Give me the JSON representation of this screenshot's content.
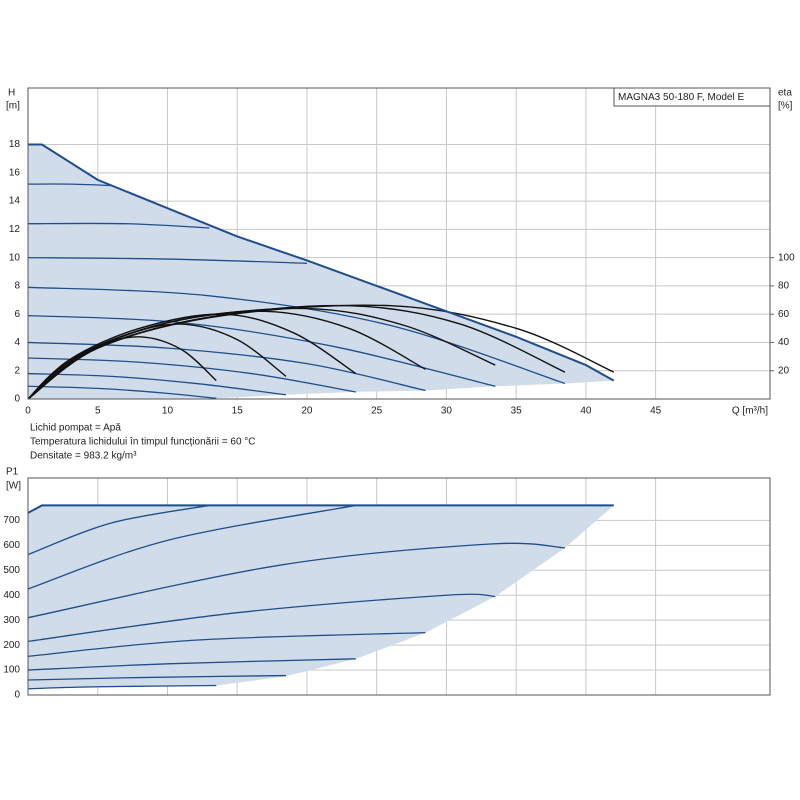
{
  "chart_data": [
    {
      "type": "line",
      "title": "MAGNA3 50-180 F, Model E",
      "y_label": "H",
      "y_unit": "[m]",
      "y2_label": "eta",
      "y2_unit": "[%]",
      "x_label": "Q [m³/h]",
      "notes": [
        "Lichid pompat = Apă",
        "Temperatura lichidului în timpul funcționării = 60 °C",
        "Densitate = 983.2 kg/m³"
      ],
      "xlim": [
        0,
        53.2
      ],
      "ylim": [
        0,
        22
      ],
      "y2lim": [
        0,
        220
      ],
      "xticks": [
        0,
        5,
        10,
        15,
        20,
        25,
        30,
        35,
        40,
        45
      ],
      "yticks": [
        0,
        2,
        4,
        6,
        8,
        10,
        12,
        14,
        16,
        18
      ],
      "y2ticks": [
        20,
        40,
        60,
        80,
        100
      ],
      "grid": true,
      "area_color": "#d0dce9",
      "envelope": {
        "color": "#1f4e8c",
        "x": [
          0,
          1,
          5,
          10,
          15,
          20,
          25,
          30,
          35,
          40,
          42
        ],
        "values": [
          18,
          18,
          15.5,
          13.5,
          11.5,
          9.8,
          8,
          6.2,
          4.4,
          2.4,
          1.3
        ]
      },
      "lower_bound": {
        "x": [
          0,
          13.5,
          18.5,
          23.5,
          28.5,
          33.5,
          38.5,
          42
        ],
        "values": [
          0,
          0.05,
          0.3,
          0.5,
          0.6,
          0.9,
          1.1,
          1.3
        ]
      },
      "series": [
        {
          "color": "#1f4e8c",
          "x": [
            0,
            5,
            10,
            13.5
          ],
          "values": [
            0.9,
            0.75,
            0.4,
            0.05
          ]
        },
        {
          "color": "#1f4e8c",
          "x": [
            0,
            6,
            12,
            18.5
          ],
          "values": [
            1.8,
            1.6,
            1.1,
            0.3
          ]
        },
        {
          "color": "#1f4e8c",
          "x": [
            0,
            8,
            16,
            23.5
          ],
          "values": [
            2.9,
            2.6,
            1.8,
            0.5
          ]
        },
        {
          "color": "#1f4e8c",
          "x": [
            0,
            10,
            20,
            28.5
          ],
          "values": [
            4,
            3.6,
            2.5,
            0.6
          ]
        },
        {
          "color": "#1f4e8c",
          "x": [
            0,
            11,
            22,
            33.5
          ],
          "values": [
            5.9,
            5.4,
            3.7,
            0.9
          ]
        },
        {
          "color": "#1f4e8c",
          "x": [
            0,
            13,
            26,
            38.5
          ],
          "values": [
            7.9,
            7.3,
            5.2,
            1.1
          ]
        },
        {
          "color": "#1f4e8c",
          "x": [
            0,
            10,
            20
          ],
          "values": [
            10,
            9.9,
            9.6
          ]
        },
        {
          "color": "#1f4e8c",
          "x": [
            0,
            7,
            13
          ],
          "values": [
            12.4,
            12.4,
            12.1
          ]
        },
        {
          "color": "#1f4e8c",
          "x": [
            0,
            3,
            6
          ],
          "values": [
            15.2,
            15.2,
            15.1
          ]
        },
        {
          "color": "#111111",
          "axis": "y2",
          "x": [
            0,
            2,
            5,
            8,
            11,
            13.5
          ],
          "values": [
            0,
            20,
            37,
            44,
            35,
            13
          ]
        },
        {
          "color": "#111111",
          "axis": "y2",
          "x": [
            0,
            3,
            7,
            11,
            15,
            18.5
          ],
          "values": [
            0,
            25,
            45,
            53,
            42,
            16
          ]
        },
        {
          "color": "#111111",
          "axis": "y2",
          "x": [
            0,
            3,
            8,
            14,
            19,
            23.5
          ],
          "values": [
            0,
            28,
            50,
            60,
            47,
            18
          ]
        },
        {
          "color": "#111111",
          "axis": "y2",
          "x": [
            0,
            4,
            10,
            17,
            23,
            28.5
          ],
          "values": [
            0,
            32,
            54,
            62,
            50,
            21
          ]
        },
        {
          "color": "#111111",
          "axis": "y2",
          "x": [
            0,
            4,
            11,
            20,
            27,
            33.5
          ],
          "values": [
            0,
            33,
            56,
            64,
            52,
            24
          ]
        },
        {
          "color": "#111111",
          "axis": "y2",
          "x": [
            0,
            5,
            13,
            23,
            31,
            38.5
          ],
          "values": [
            0,
            36,
            58,
            66,
            53,
            19
          ]
        },
        {
          "color": "#111111",
          "axis": "y2",
          "x": [
            0,
            5,
            14,
            26,
            35,
            42
          ],
          "values": [
            0,
            36,
            59,
            66,
            50,
            19
          ]
        }
      ]
    },
    {
      "type": "line",
      "y_label": "P1",
      "y_unit": "[W]",
      "xlim": [
        0,
        53.2
      ],
      "ylim": [
        0,
        870
      ],
      "yticks": [
        0,
        100,
        200,
        300,
        400,
        500,
        600,
        700
      ],
      "grid": true,
      "area_color": "#d0dce9",
      "envelope": {
        "color": "#1f4e8c",
        "x": [
          0,
          1,
          42
        ],
        "values": [
          730,
          760,
          760
        ]
      },
      "lower_bound": {
        "x": [
          0,
          13.5,
          18.5,
          23.5,
          28.5,
          33.5,
          38.5,
          42
        ],
        "values": [
          25,
          38,
          75,
          145,
          250,
          395,
          590,
          760
        ]
      },
      "series": [
        {
          "color": "#1f4e8c",
          "x": [
            0,
            5,
            13.5
          ],
          "values": [
            25,
            33,
            38
          ]
        },
        {
          "color": "#1f4e8c",
          "x": [
            0,
            8,
            18.5
          ],
          "values": [
            60,
            70,
            78
          ]
        },
        {
          "color": "#1f4e8c",
          "x": [
            0,
            10,
            23.5
          ],
          "values": [
            100,
            125,
            145
          ]
        },
        {
          "color": "#1f4e8c",
          "x": [
            0,
            12,
            28.5
          ],
          "values": [
            155,
            220,
            250
          ]
        },
        {
          "color": "#1f4e8c",
          "x": [
            0,
            15,
            30,
            33.5
          ],
          "values": [
            215,
            330,
            400,
            395
          ]
        },
        {
          "color": "#1f4e8c",
          "x": [
            0,
            18,
            33,
            38.5
          ],
          "values": [
            310,
            520,
            605,
            590
          ]
        },
        {
          "color": "#1f4e8c",
          "x": [
            0,
            10,
            23.5
          ],
          "values": [
            425,
            620,
            760
          ]
        },
        {
          "color": "#1f4e8c",
          "x": [
            0,
            6,
            13
          ],
          "values": [
            563,
            690,
            760
          ]
        }
      ]
    }
  ]
}
